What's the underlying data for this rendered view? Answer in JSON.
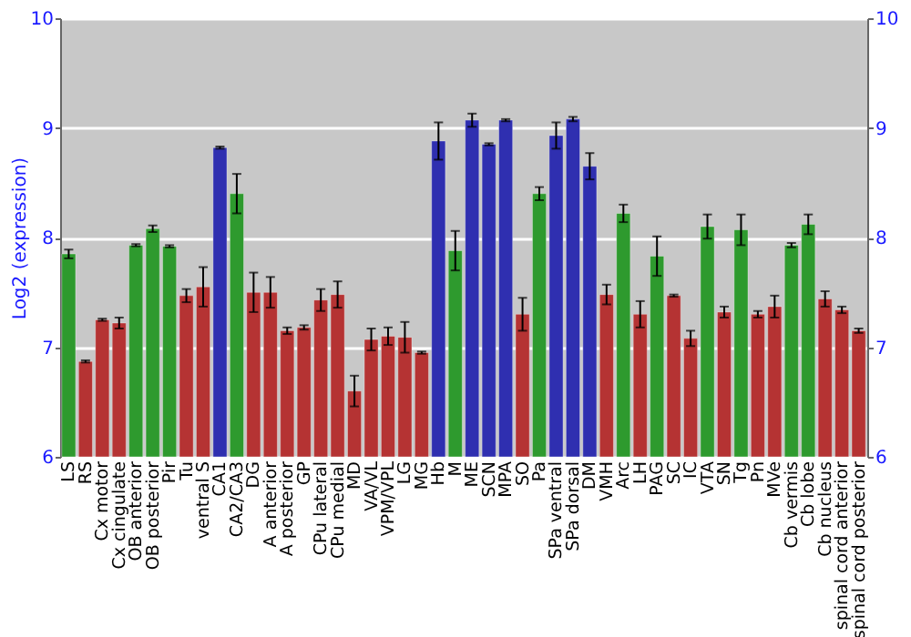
{
  "chart_data": {
    "type": "bar",
    "ylabel": "Log2 (expression)",
    "categories": [
      "LS",
      "RS",
      "Cx motor",
      "Cx cingulate",
      "OB anterior",
      "OB posterior",
      "Pir",
      "Tu",
      "ventral S",
      "CA1",
      "CA2/CA3",
      "DG",
      "A anterior",
      "A posterior",
      "GP",
      "CPu lateral",
      "CPu medial",
      "MD",
      "VA/VL",
      "VPM/VPL",
      "LG",
      "MG",
      "Hb",
      "M",
      "ME",
      "SCN",
      "MPA",
      "SO",
      "Pa",
      "SPa ventral",
      "SPa dorsal",
      "DM",
      "VMH",
      "Arc",
      "LH",
      "PAG",
      "SC",
      "IC",
      "VTA",
      "SN",
      "Tg",
      "Pn",
      "MVe",
      "Cb vermis",
      "Cb lobe",
      "Cb nucleus",
      "spinal cord anterior",
      "spinal cord posterior"
    ],
    "values": [
      7.85,
      6.87,
      7.25,
      7.22,
      7.93,
      8.08,
      7.92,
      7.47,
      7.55,
      8.82,
      8.4,
      7.5,
      7.5,
      7.15,
      7.18,
      7.43,
      7.48,
      6.6,
      7.07,
      7.1,
      7.09,
      6.95,
      8.88,
      7.88,
      9.07,
      8.85,
      9.07,
      7.3,
      8.4,
      8.93,
      9.08,
      8.65,
      7.48,
      8.22,
      7.3,
      7.83,
      7.47,
      7.08,
      8.1,
      7.32,
      8.07,
      7.3,
      7.37,
      7.93,
      8.12,
      7.44,
      7.34,
      7.15
    ],
    "errors": [
      0.04,
      0.01,
      0.01,
      0.05,
      0.01,
      0.03,
      0.01,
      0.06,
      0.18,
      0.01,
      0.18,
      0.18,
      0.14,
      0.03,
      0.02,
      0.1,
      0.12,
      0.14,
      0.1,
      0.08,
      0.14,
      0.01,
      0.17,
      0.18,
      0.06,
      0.01,
      0.01,
      0.15,
      0.06,
      0.12,
      0.02,
      0.12,
      0.09,
      0.08,
      0.12,
      0.18,
      0.01,
      0.07,
      0.11,
      0.05,
      0.14,
      0.03,
      0.1,
      0.02,
      0.09,
      0.07,
      0.03,
      0.02
    ],
    "colors": [
      "#2e9a2e",
      "#b53333",
      "#b53333",
      "#b53333",
      "#2e9a2e",
      "#2e9a2e",
      "#2e9a2e",
      "#b53333",
      "#b53333",
      "#2f2fb0",
      "#2e9a2e",
      "#b53333",
      "#b53333",
      "#b53333",
      "#b53333",
      "#b53333",
      "#b53333",
      "#b53333",
      "#b53333",
      "#b53333",
      "#b53333",
      "#b53333",
      "#2f2fb0",
      "#2e9a2e",
      "#2f2fb0",
      "#2f2fb0",
      "#2f2fb0",
      "#b53333",
      "#2e9a2e",
      "#2f2fb0",
      "#2f2fb0",
      "#2f2fb0",
      "#b53333",
      "#2e9a2e",
      "#b53333",
      "#2e9a2e",
      "#b53333",
      "#b53333",
      "#2e9a2e",
      "#b53333",
      "#2e9a2e",
      "#b53333",
      "#b53333",
      "#2e9a2e",
      "#2e9a2e",
      "#b53333",
      "#b53333",
      "#b53333"
    ],
    "ylim": [
      6,
      10
    ],
    "yticks": [
      6,
      7,
      8,
      9,
      10
    ],
    "y2lim": [
      6,
      10
    ],
    "y2ticks": [
      6,
      7,
      8,
      9,
      10
    ],
    "grid": "y"
  }
}
